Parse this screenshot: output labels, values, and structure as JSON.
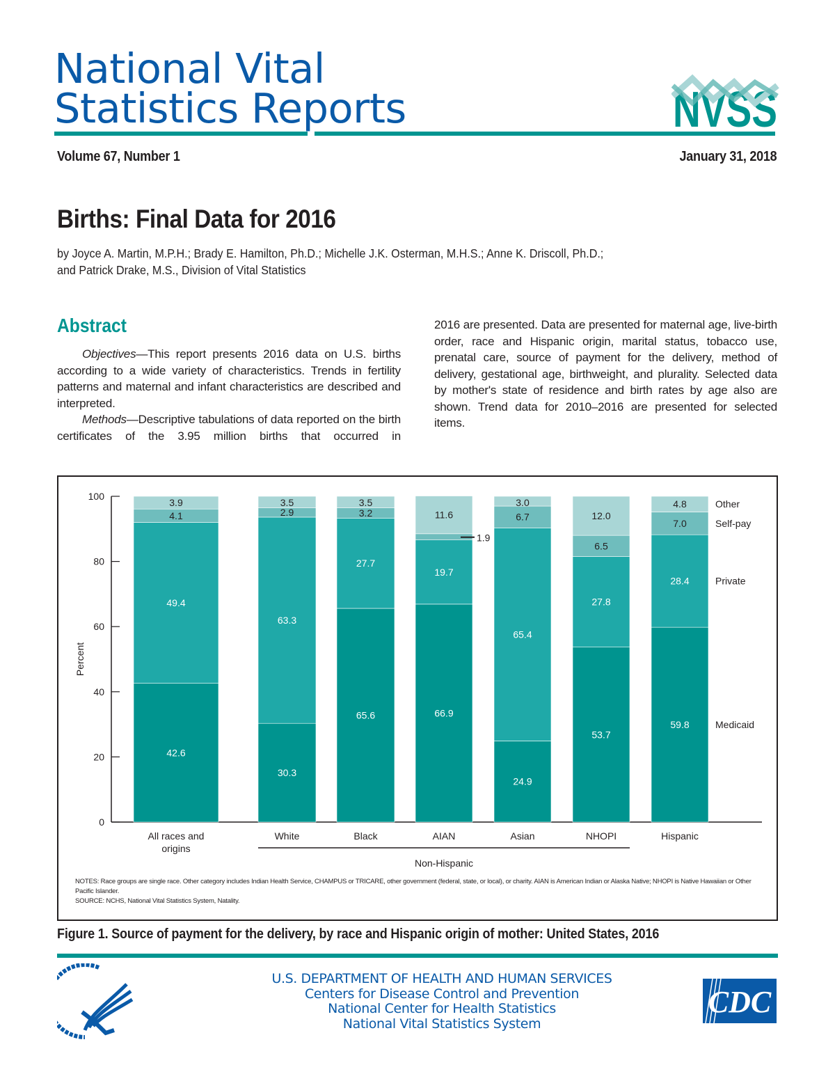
{
  "header": {
    "title_line1": "National Vital",
    "title_line2": "Statistics Reports",
    "logo_text": "NVSS",
    "volume": "Volume 67, Number 1",
    "date": "January 31, 2018"
  },
  "report": {
    "title": "Births: Final Data for 2016",
    "authors_line1": "by Joyce A. Martin, M.P.H.; Brady E. Hamilton, Ph.D.; Michelle J.K. Osterman, M.H.S.; Anne K. Driscoll, Ph.D.;",
    "authors_line2": "and Patrick Drake, M.S., Division of Vital Statistics"
  },
  "abstract": {
    "heading": "Abstract",
    "objectives_label": "Objectives",
    "objectives_text": "—This report presents 2016 data on U.S. births according to a wide variety of characteristics. Trends in fertility patterns and maternal and infant characteristics are described and interpreted.",
    "methods_label": "Methods",
    "methods_text": "—Descriptive tabulations of data reported on the birth certificates of the 3.95 million births that occurred in",
    "methods_continued": "2016 are presented. Data are presented for maternal age, live-birth order, race and Hispanic origin, marital status, tobacco use, prenatal care, source of payment for the delivery, method of delivery, gestational age, birthweight, and plurality. Selected data by mother's state of residence and birth rates by age also are shown. Trend data for 2010–2016 are presented for selected items."
  },
  "chart_data": {
    "type": "bar",
    "stacked": true,
    "ylabel": "Percent",
    "ylim": [
      0,
      100
    ],
    "yticks": [
      0,
      20,
      40,
      60,
      80,
      100
    ],
    "categories": [
      "All races and origins",
      "White",
      "Black",
      "AIAN",
      "Asian",
      "NHOPI",
      "Hispanic"
    ],
    "group_label": "Non-Hispanic",
    "series": [
      {
        "name": "Medicaid",
        "color": "#00948f",
        "values": [
          42.6,
          30.3,
          65.6,
          66.9,
          24.9,
          53.7,
          59.8
        ]
      },
      {
        "name": "Private",
        "color": "#1fa9a8",
        "values": [
          49.4,
          63.3,
          27.7,
          19.7,
          65.4,
          27.8,
          28.4
        ]
      },
      {
        "name": "Self-pay",
        "color": "#6fbdbd",
        "values": [
          4.1,
          2.9,
          3.2,
          1.9,
          6.7,
          6.5,
          7.0
        ]
      },
      {
        "name": "Other",
        "color": "#a9d6d6",
        "values": [
          3.9,
          3.5,
          3.5,
          11.6,
          3.0,
          12.0,
          4.8
        ]
      }
    ],
    "legend_placement": "right",
    "notes": "NOTES: Race groups are single race. Other category includes Indian Health Service, CHAMPUS or TRICARE, other government (federal, state, or local), or charity. AIAN is American Indian or Alaska Native; NHOPI is Native Hawaiian or Other Pacific Islander.",
    "source": "SOURCE: NCHS, National Vital Statistics System, Natality."
  },
  "figure": {
    "caption": "Figure 1. Source of payment for the delivery, by race and Hispanic origin of mother: United States, 2016"
  },
  "footer": {
    "dept": "U.S. DEPARTMENT OF HEALTH AND HUMAN SERVICES",
    "line2": "Centers for Disease Control and Prevention",
    "line3": "National Center for Health Statistics",
    "line4": "National Vital Statistics System",
    "cdc_logo": "CDC"
  },
  "colors": {
    "brand_blue": "#0a5aa8",
    "brand_teal": "#009591"
  }
}
